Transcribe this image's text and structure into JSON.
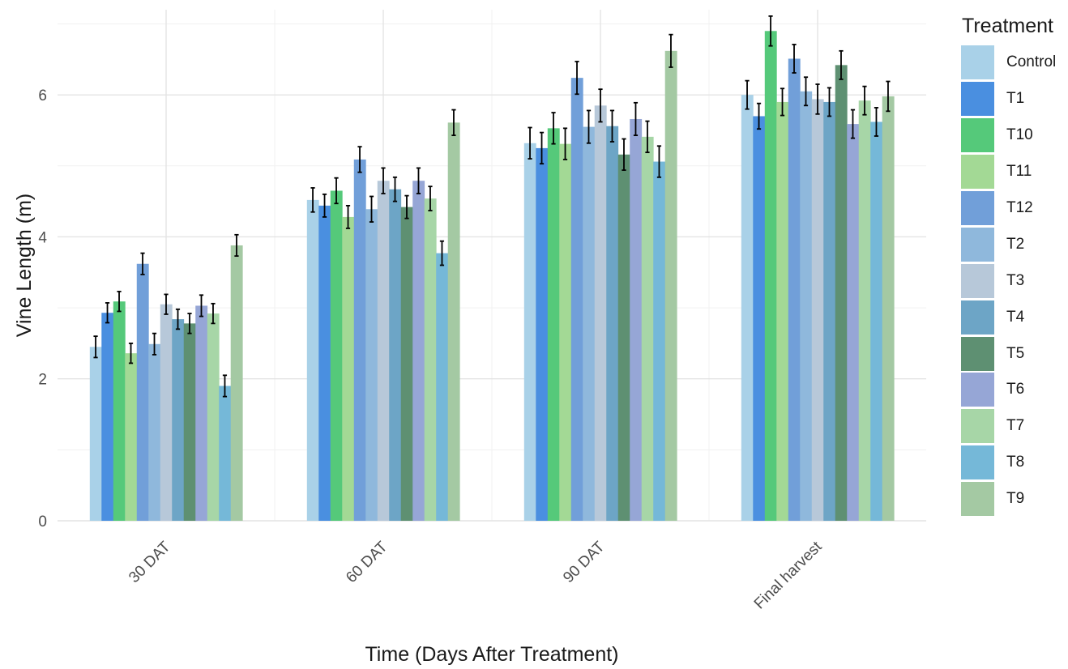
{
  "chart_data": {
    "type": "bar",
    "xlabel": "Time (Days After Treatment)",
    "ylabel": "Vine Length (m)",
    "ylim": [
      0,
      7.2
    ],
    "yticks": [
      0,
      2,
      4,
      6
    ],
    "grid": true,
    "legend_title": "Treatment",
    "legend_position": "right",
    "categories": [
      "30 DAT",
      "60 DAT",
      "90 DAT",
      "Final harvest"
    ],
    "series": [
      {
        "name": "Control",
        "color": "#a9d1e8",
        "values": [
          2.45,
          4.52,
          5.32,
          6.0
        ],
        "errors": [
          0.15,
          0.17,
          0.22,
          0.2
        ]
      },
      {
        "name": "T1",
        "color": "#4a8fe0",
        "values": [
          2.93,
          4.44,
          5.25,
          5.7
        ],
        "errors": [
          0.14,
          0.16,
          0.22,
          0.18
        ]
      },
      {
        "name": "T10",
        "color": "#55c97a",
        "values": [
          3.09,
          4.65,
          5.53,
          6.9
        ],
        "errors": [
          0.14,
          0.18,
          0.22,
          0.21
        ]
      },
      {
        "name": "T11",
        "color": "#a3d995",
        "values": [
          2.36,
          4.28,
          5.31,
          5.9
        ],
        "errors": [
          0.14,
          0.16,
          0.22,
          0.19
        ]
      },
      {
        "name": "T12",
        "color": "#719fd9",
        "values": [
          3.62,
          5.09,
          6.24,
          6.51
        ],
        "errors": [
          0.15,
          0.18,
          0.23,
          0.2
        ]
      },
      {
        "name": "T2",
        "color": "#8fb8dc",
        "values": [
          2.49,
          4.39,
          5.55,
          6.05
        ],
        "errors": [
          0.15,
          0.18,
          0.23,
          0.2
        ]
      },
      {
        "name": "T3",
        "color": "#b7c8d9",
        "values": [
          3.05,
          4.79,
          5.85,
          5.94
        ],
        "errors": [
          0.14,
          0.18,
          0.23,
          0.21
        ]
      },
      {
        "name": "T4",
        "color": "#6da5c6",
        "values": [
          2.84,
          4.67,
          5.56,
          5.9
        ],
        "errors": [
          0.14,
          0.17,
          0.22,
          0.2
        ]
      },
      {
        "name": "T5",
        "color": "#5e9072",
        "values": [
          2.78,
          4.42,
          5.16,
          6.42
        ],
        "errors": [
          0.14,
          0.16,
          0.22,
          0.2
        ]
      },
      {
        "name": "T6",
        "color": "#96a6d6",
        "values": [
          3.03,
          4.79,
          5.66,
          5.59
        ],
        "errors": [
          0.15,
          0.18,
          0.23,
          0.2
        ]
      },
      {
        "name": "T7",
        "color": "#a7d6a7",
        "values": [
          2.92,
          4.54,
          5.41,
          5.92
        ],
        "errors": [
          0.14,
          0.17,
          0.22,
          0.2
        ]
      },
      {
        "name": "T8",
        "color": "#75b8d8",
        "values": [
          1.9,
          3.77,
          5.06,
          5.62
        ],
        "errors": [
          0.15,
          0.17,
          0.22,
          0.2
        ]
      },
      {
        "name": "T9",
        "color": "#a4c9a3",
        "values": [
          3.88,
          5.61,
          6.62,
          5.98
        ],
        "errors": [
          0.15,
          0.18,
          0.23,
          0.21
        ]
      }
    ]
  }
}
